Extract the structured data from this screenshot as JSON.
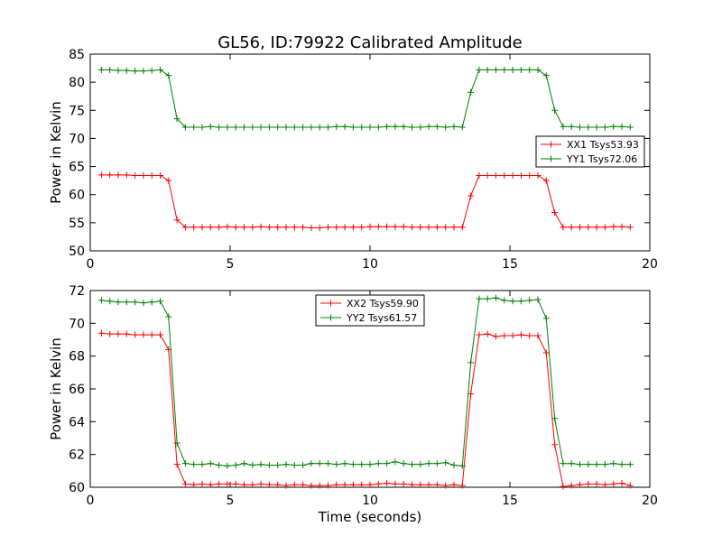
{
  "figure": {
    "title": "GL56, ID:79922 Calibrated Amplitude"
  },
  "chart_data": [
    {
      "type": "line",
      "title": "GL56, ID:79922 Calibrated Amplitude",
      "xlabel": "",
      "ylabel": "Power in Kelvin",
      "xlim": [
        0,
        20
      ],
      "ylim": [
        50,
        85
      ],
      "xticks": [
        0,
        5,
        10,
        15,
        20
      ],
      "yticks": [
        50,
        55,
        60,
        65,
        70,
        75,
        80,
        85
      ],
      "grid": false,
      "legend_position": "center-right",
      "x": [
        0.4,
        0.7,
        1.0,
        1.3,
        1.6,
        1.9,
        2.2,
        2.5,
        2.8,
        3.1,
        3.4,
        3.7,
        4.0,
        4.3,
        4.6,
        4.9,
        5.2,
        5.5,
        5.8,
        6.1,
        6.4,
        6.7,
        7.0,
        7.3,
        7.6,
        7.9,
        8.2,
        8.5,
        8.8,
        9.1,
        9.4,
        9.7,
        10.0,
        10.3,
        10.6,
        10.9,
        11.2,
        11.5,
        11.8,
        12.1,
        12.4,
        12.7,
        13.0,
        13.3,
        13.6,
        13.9,
        14.2,
        14.5,
        14.8,
        15.1,
        15.4,
        15.7,
        16.0,
        16.3,
        16.6,
        16.9,
        17.2,
        17.5,
        17.8,
        18.1,
        18.4,
        18.7,
        19.0,
        19.3
      ],
      "series": [
        {
          "name": "XX1 Tsys53.93",
          "color": "#ff0000",
          "values": [
            63.5,
            63.5,
            63.5,
            63.5,
            63.4,
            63.4,
            63.4,
            63.4,
            62.5,
            55.5,
            54.2,
            54.2,
            54.2,
            54.2,
            54.2,
            54.3,
            54.2,
            54.2,
            54.2,
            54.3,
            54.2,
            54.2,
            54.2,
            54.2,
            54.2,
            54.1,
            54.1,
            54.2,
            54.2,
            54.2,
            54.2,
            54.2,
            54.3,
            54.3,
            54.3,
            54.3,
            54.3,
            54.2,
            54.2,
            54.2,
            54.2,
            54.2,
            54.2,
            54.2,
            59.8,
            63.4,
            63.4,
            63.4,
            63.4,
            63.4,
            63.4,
            63.4,
            63.4,
            62.5,
            56.8,
            54.2,
            54.2,
            54.2,
            54.2,
            54.2,
            54.2,
            54.3,
            54.3,
            54.2
          ]
        },
        {
          "name": "YY1 Tsys72.06",
          "color": "#008000",
          "values": [
            82.2,
            82.2,
            82.1,
            82.1,
            82.0,
            82.0,
            82.1,
            82.2,
            81.2,
            73.5,
            72.0,
            72.0,
            72.0,
            72.1,
            72.0,
            72.0,
            72.0,
            72.0,
            72.0,
            72.0,
            72.0,
            72.0,
            72.0,
            72.0,
            72.0,
            72.0,
            72.0,
            72.0,
            72.1,
            72.1,
            72.0,
            72.0,
            72.0,
            72.0,
            72.1,
            72.1,
            72.1,
            72.0,
            72.0,
            72.1,
            72.1,
            72.0,
            72.1,
            72.0,
            78.2,
            82.2,
            82.2,
            82.2,
            82.2,
            82.2,
            82.2,
            82.2,
            82.2,
            81.2,
            75.0,
            72.1,
            72.1,
            72.0,
            72.0,
            72.0,
            72.0,
            72.1,
            72.1,
            72.0
          ]
        }
      ]
    },
    {
      "type": "line",
      "title": "",
      "xlabel": "Time (seconds)",
      "ylabel": "Power in Kelvin",
      "xlim": [
        0,
        20
      ],
      "ylim": [
        60,
        72
      ],
      "xticks": [
        0,
        5,
        10,
        15,
        20
      ],
      "yticks": [
        60,
        62,
        64,
        66,
        68,
        70,
        72
      ],
      "grid": false,
      "legend_position": "top-center",
      "x": [
        0.4,
        0.7,
        1.0,
        1.3,
        1.6,
        1.9,
        2.2,
        2.5,
        2.8,
        3.1,
        3.4,
        3.7,
        4.0,
        4.3,
        4.6,
        4.9,
        5.2,
        5.5,
        5.8,
        6.1,
        6.4,
        6.7,
        7.0,
        7.3,
        7.6,
        7.9,
        8.2,
        8.5,
        8.8,
        9.1,
        9.4,
        9.7,
        10.0,
        10.3,
        10.6,
        10.9,
        11.2,
        11.5,
        11.8,
        12.1,
        12.4,
        12.7,
        13.0,
        13.3,
        13.6,
        13.9,
        14.2,
        14.5,
        14.8,
        15.1,
        15.4,
        15.7,
        16.0,
        16.3,
        16.6,
        16.9,
        17.2,
        17.5,
        17.8,
        18.1,
        18.4,
        18.7,
        19.0,
        19.3
      ],
      "series": [
        {
          "name": "XX2 Tsys59.90",
          "color": "#ff0000",
          "values": [
            69.4,
            69.35,
            69.35,
            69.35,
            69.3,
            69.3,
            69.3,
            69.3,
            68.4,
            61.4,
            60.2,
            60.15,
            60.2,
            60.15,
            60.2,
            60.2,
            60.2,
            60.15,
            60.15,
            60.2,
            60.15,
            60.15,
            60.1,
            60.15,
            60.15,
            60.1,
            60.1,
            60.1,
            60.15,
            60.15,
            60.15,
            60.15,
            60.15,
            60.2,
            60.25,
            60.2,
            60.2,
            60.15,
            60.15,
            60.15,
            60.15,
            60.1,
            60.15,
            60.1,
            65.7,
            69.3,
            69.35,
            69.2,
            69.25,
            69.25,
            69.3,
            69.25,
            69.25,
            68.2,
            62.6,
            60.05,
            60.1,
            60.15,
            60.2,
            60.2,
            60.15,
            60.2,
            60.25,
            60.1
          ]
        },
        {
          "name": "YY2 Tsys61.57",
          "color": "#008000",
          "values": [
            71.4,
            71.35,
            71.3,
            71.3,
            71.3,
            71.25,
            71.3,
            71.35,
            70.4,
            62.7,
            61.45,
            61.4,
            61.4,
            61.45,
            61.35,
            61.3,
            61.35,
            61.45,
            61.35,
            61.4,
            61.35,
            61.35,
            61.4,
            61.35,
            61.35,
            61.45,
            61.45,
            61.45,
            61.4,
            61.45,
            61.4,
            61.4,
            61.4,
            61.45,
            61.45,
            61.55,
            61.45,
            61.4,
            61.4,
            61.45,
            61.45,
            61.5,
            61.35,
            61.3,
            67.6,
            71.5,
            71.5,
            71.55,
            71.4,
            71.35,
            71.35,
            71.4,
            71.45,
            70.3,
            64.2,
            61.45,
            61.45,
            61.4,
            61.4,
            61.4,
            61.4,
            61.45,
            61.4,
            61.4
          ]
        }
      ]
    }
  ]
}
